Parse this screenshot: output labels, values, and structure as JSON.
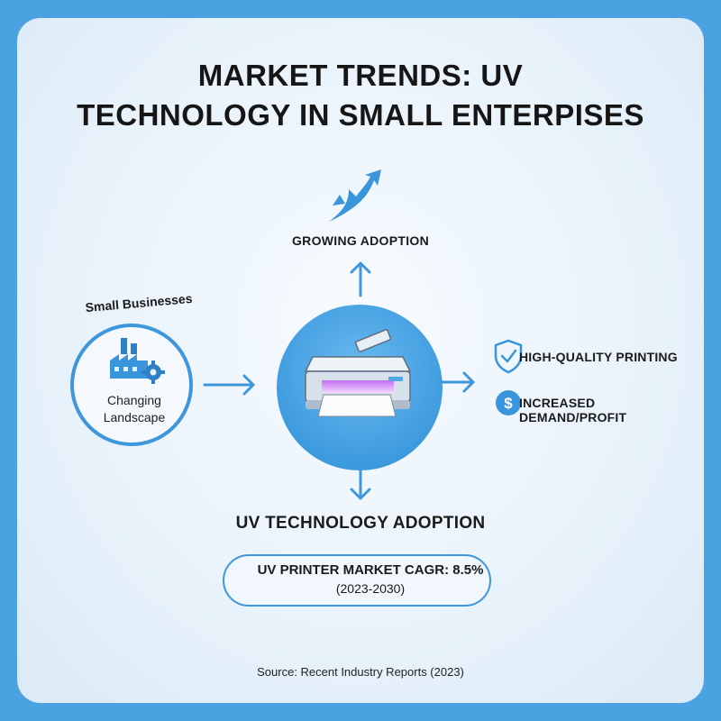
{
  "title": {
    "line1": "MARKET TRENDS: UV",
    "line2": "TECHNOLOGY IN SMALL ENTERPISES"
  },
  "top": {
    "label": "GROWING ADOPTION",
    "icon": "growth-arrow-icon"
  },
  "left": {
    "arc_label": "Small Businesses",
    "inner_line1": "Changing",
    "inner_line2": "Landscape",
    "icon": "factory-gear-icon"
  },
  "center": {
    "icon": "uv-printer-icon"
  },
  "right": {
    "items": [
      {
        "label": "HIGH-QUALITY PRINTING",
        "icon": "shield-check-icon"
      },
      {
        "label": "INCREASED DEMAND/PROFIT",
        "icon": "dollar-icon"
      }
    ]
  },
  "bottom": {
    "label": "UV TECHNOLOGY ADOPTION",
    "stat_line1": "UV PRINTER MARKET CAGR: 8.5%",
    "stat_line2": "(2023-2030)",
    "icon": "bar-chart-icon"
  },
  "source": "Source: Recent Industry Reports (2023)",
  "colors": {
    "background": "#4aa3e0",
    "accent": "#3e96db",
    "circle_fill": "#4ea8e6",
    "text": "#161616"
  }
}
